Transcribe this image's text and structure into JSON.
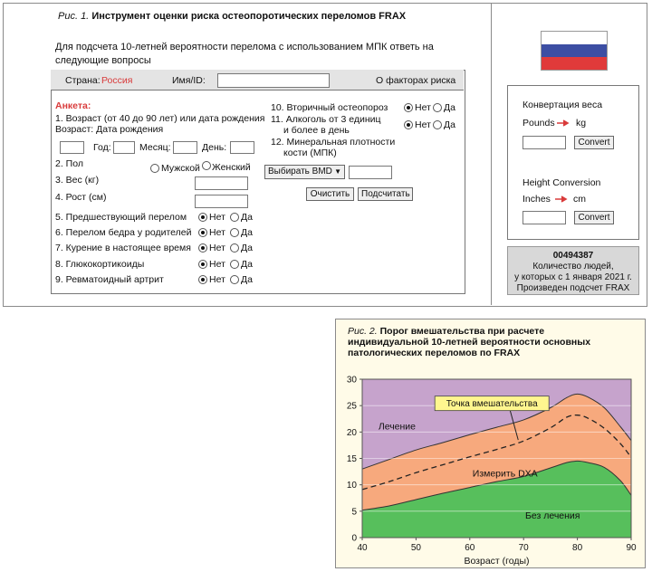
{
  "fig1": {
    "caption_prefix": "Рис. 1.",
    "caption_title": "Инструмент оценки риска остеопоротических переломов FRAX",
    "intro": "Для подсчета 10-летней вероятности перелома с использованием МПК ответь на следующие вопросы",
    "header": {
      "country_label": "Страна:",
      "country_value": "Россия",
      "name_label": "Имя/ID:",
      "name_value": "",
      "risk_link": "О факторах риска"
    },
    "questionnaire_title": "Анкета:",
    "age_q1": "1. Возраст (от 40 до 90 лет) или дата рождения",
    "age_q2": "Возраст: Дата рождения",
    "year_label": "Год:",
    "month_label": "Месяц:",
    "day_label": "День:",
    "sex_label": "2. Пол",
    "sex_male": "Мужской",
    "sex_female": "Женский",
    "weight_label": "3. Вес (кг)",
    "height_label": "4. Рост (см)",
    "no_label": "Нет",
    "yes_label": "Да",
    "risk_items": [
      "5. Предшествующий перелом",
      "6. Перелом бедра у родителей",
      "7. Курение в настоящее время",
      "8. Глюкокортикоиды",
      "9. Ревматоидный артрит"
    ],
    "q10": "10. Вторичный остеопороз",
    "q11_1": "11. Алкоголь от 3 единиц",
    "q11_2": "и более в день",
    "q12_1": "12. Минеральная плотности",
    "q12_2": "кости (МПК)",
    "bmd_select": "Выбирать BMD",
    "clear_button": "Очистить",
    "calc_button": "Подсчитать",
    "flag_colors": [
      "#ffffff",
      "#3c4ea3",
      "#e03a3a"
    ],
    "conversion": {
      "weight_title": "Конвертация веса",
      "pounds": "Pounds",
      "kg": "kg",
      "height_title": "Height Conversion",
      "inches": "Inches",
      "cm": "cm",
      "convert": "Convert"
    },
    "counter": {
      "number": "00494387",
      "line1": "Количество людей,",
      "line2": "у которых с 1 января 2021 г.",
      "line3": "Произведен подсчет FRAX"
    }
  },
  "fig2": {
    "caption_prefix": "Рис. 2.",
    "caption_line1": "Порог вмешательства при расчете",
    "caption_line2": "индивидуальной 10-летней вероятности основных",
    "caption_line3": "патологических переломов по FRAX"
  },
  "chart_data": {
    "type": "area",
    "xlabel": "Возраст (годы)",
    "ylabel": "",
    "xlim": [
      40,
      90
    ],
    "ylim": [
      0,
      30
    ],
    "x_ticks": [
      40,
      50,
      60,
      70,
      80,
      90
    ],
    "y_ticks": [
      0,
      5,
      10,
      15,
      20,
      25,
      30
    ],
    "x": [
      40,
      45,
      50,
      55,
      60,
      65,
      70,
      75,
      78,
      80,
      82,
      85,
      88,
      90
    ],
    "regions": [
      {
        "label": "Без лечения",
        "color": "#57bf5c",
        "upper": [
          5.2,
          6.0,
          7.2,
          8.4,
          9.5,
          10.6,
          11.6,
          13.2,
          14.2,
          14.5,
          14.2,
          13.3,
          10.8,
          8.0
        ]
      },
      {
        "label": "Измерить DXA",
        "color": "#f7a97d",
        "upper": [
          13.0,
          14.8,
          16.6,
          18.0,
          19.5,
          20.9,
          22.3,
          24.6,
          26.5,
          27.2,
          26.6,
          24.6,
          21.0,
          18.4
        ]
      },
      {
        "label": "Лечение",
        "color": "#c6a3cc",
        "upper": [
          30,
          30,
          30,
          30,
          30,
          30,
          30,
          30,
          30,
          30,
          30,
          30,
          30,
          30
        ]
      }
    ],
    "threshold": {
      "label": "Точка вмешательства",
      "values": [
        9.1,
        10.6,
        12.3,
        13.8,
        15.3,
        16.7,
        18.3,
        20.8,
        22.8,
        23.2,
        22.6,
        20.7,
        17.8,
        15.2
      ]
    },
    "grid": "horizontal",
    "label_colors": {
      "callout_bg": "#fff68f"
    }
  }
}
